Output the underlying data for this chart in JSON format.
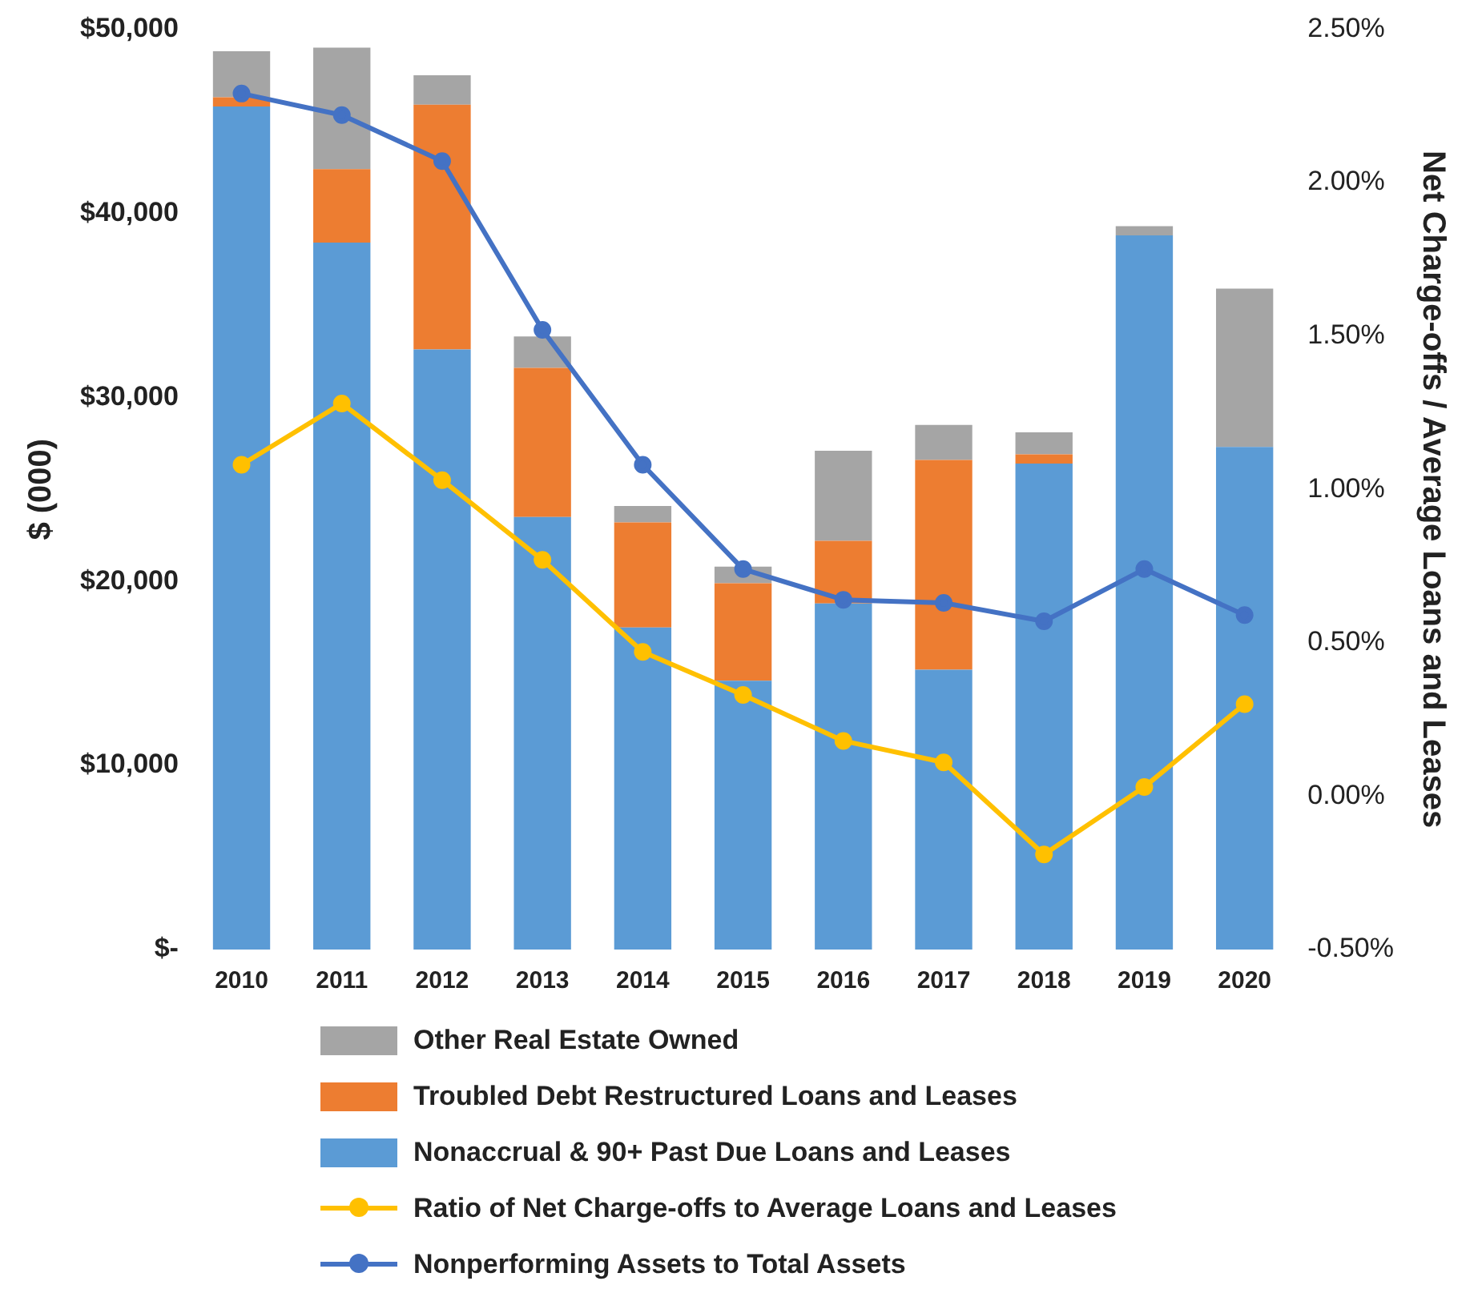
{
  "chart_data": {
    "type": "bar",
    "stacked": true,
    "ylabel": "$ (000)",
    "y2label": "Net Charge-offs / Average Loans and Leases",
    "categories": [
      "2010",
      "2011",
      "2012",
      "2013",
      "2014",
      "2015",
      "2016",
      "2017",
      "2018",
      "2019",
      "2020"
    ],
    "series": [
      {
        "name": "Nonaccrual & 90+ Past Due Loans and Leases",
        "color": "#5b9bd5",
        "values": [
          45800,
          38400,
          32600,
          23500,
          17500,
          14600,
          18800,
          15200,
          26400,
          38800,
          27300
        ]
      },
      {
        "name": "Troubled Debt Restructured Loans and Leases",
        "color": "#ed7d31",
        "values": [
          500,
          4000,
          13300,
          8100,
          5700,
          5300,
          3400,
          11400,
          500,
          0,
          0
        ]
      },
      {
        "name": "Other Real Estate Owned",
        "color": "#a5a5a5",
        "values": [
          2500,
          6600,
          1600,
          1700,
          900,
          900,
          4900,
          1900,
          1200,
          500,
          8600
        ]
      },
      {
        "name": "Ratio of Net Charge-offs to Average Loans and Leases",
        "type": "line",
        "axis": "y2",
        "color": "#ffc000",
        "values": [
          1.08,
          1.28,
          1.03,
          0.77,
          0.47,
          0.33,
          0.18,
          0.11,
          -0.19,
          0.03,
          0.3
        ]
      },
      {
        "name": "Nonperforming Assets to Total Assets",
        "type": "line",
        "axis": "y2",
        "color": "#4472c4",
        "values": [
          2.29,
          2.22,
          2.07,
          1.52,
          1.08,
          0.74,
          0.64,
          0.63,
          0.57,
          0.74,
          0.59
        ]
      }
    ],
    "ylim": [
      0,
      50000
    ],
    "yticks": [
      {
        "value": 0,
        "label": "$-"
      },
      {
        "value": 10000,
        "label": "$10,000"
      },
      {
        "value": 20000,
        "label": "$20,000"
      },
      {
        "value": 30000,
        "label": "$30,000"
      },
      {
        "value": 40000,
        "label": "$40,000"
      },
      {
        "value": 50000,
        "label": "$50,000"
      }
    ],
    "y2lim": [
      -0.5,
      2.5
    ],
    "y2ticks": [
      {
        "value": -0.5,
        "label": "-0.50%"
      },
      {
        "value": 0,
        "label": "0.00%"
      },
      {
        "value": 0.5,
        "label": "0.50%"
      },
      {
        "value": 1,
        "label": "1.00%"
      },
      {
        "value": 1.5,
        "label": "1.50%"
      },
      {
        "value": 2,
        "label": "2.00%"
      },
      {
        "value": 2.5,
        "label": "2.50%"
      }
    ],
    "grid": false,
    "legend": "bottom",
    "marker": "circle",
    "line_style": "solid"
  }
}
